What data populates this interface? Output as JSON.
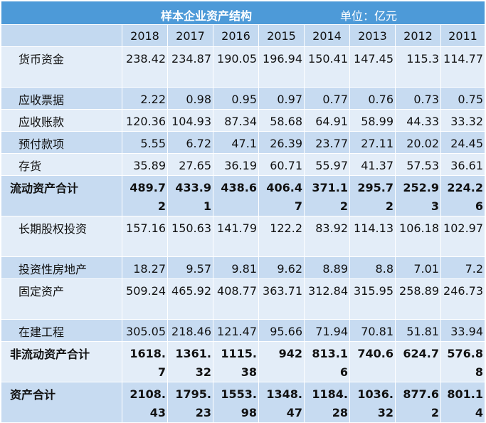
{
  "title": "样本企业资产结构",
  "unit": "单位：亿元",
  "years": [
    "2018",
    "2017",
    "2016",
    "2015",
    "2014",
    "2013",
    "2012",
    "2011"
  ],
  "rows": [
    {
      "label": "货币资金",
      "values": [
        "238.42",
        "234.87",
        "190.05",
        "196.94",
        "150.41",
        "147.45",
        "115.3",
        "114.77"
      ],
      "bold": false,
      "shade": "light",
      "tall": true
    },
    {
      "label": "应收票据",
      "values": [
        "2.22",
        "0.98",
        "0.95",
        "0.97",
        "0.77",
        "0.76",
        "0.73",
        "0.75"
      ],
      "bold": false,
      "shade": "dark",
      "tall": false
    },
    {
      "label": "应收账款",
      "values": [
        "120.36",
        "104.93",
        "87.34",
        "58.68",
        "64.91",
        "58.99",
        "44.33",
        "33.32"
      ],
      "bold": false,
      "shade": "light",
      "tall": false
    },
    {
      "label": "预付款项",
      "values": [
        "5.55",
        "6.72",
        "47.1",
        "26.39",
        "23.77",
        "27.11",
        "20.02",
        "24.45"
      ],
      "bold": false,
      "shade": "dark",
      "tall": false
    },
    {
      "label": "存货",
      "values": [
        "35.89",
        "27.65",
        "36.19",
        "60.71",
        "55.97",
        "41.37",
        "57.53",
        "36.61"
      ],
      "bold": false,
      "shade": "light",
      "tall": false
    },
    {
      "label": "流动资产合计",
      "values": [
        "489.72",
        "433.91",
        "438.6",
        "406.47",
        "371.12",
        "295.72",
        "252.93",
        "224.26"
      ],
      "bold": true,
      "shade": "dark",
      "tall": true
    },
    {
      "label": "长期股权投资",
      "values": [
        "157.16",
        "150.63",
        "141.79",
        "122.2",
        "83.92",
        "114.13",
        "106.18",
        "102.97"
      ],
      "bold": false,
      "shade": "light",
      "tall": true
    },
    {
      "label": "投资性房地产",
      "values": [
        "18.27",
        "9.57",
        "9.81",
        "9.62",
        "8.89",
        "8.8",
        "7.01",
        "7.2"
      ],
      "bold": false,
      "shade": "dark",
      "tall": false
    },
    {
      "label": "固定资产",
      "values": [
        "509.24",
        "465.92",
        "408.77",
        "363.71",
        "312.84",
        "315.95",
        "258.89",
        "246.73"
      ],
      "bold": false,
      "shade": "light",
      "tall": true
    },
    {
      "label": "在建工程",
      "values": [
        "305.05",
        "218.46",
        "121.47",
        "95.66",
        "71.94",
        "70.81",
        "51.81",
        "33.94"
      ],
      "bold": false,
      "shade": "dark",
      "tall": false
    },
    {
      "label": "非流动资产合计",
      "values": [
        "1618.7",
        "1361.32",
        "1115.38",
        "942",
        "813.16",
        "740.6",
        "624.7",
        "576.88"
      ],
      "bold": true,
      "shade": "light",
      "tall": true
    },
    {
      "label": "资产合计",
      "values": [
        "2108.43",
        "1795.23",
        "1553.98",
        "1348.47",
        "1184.28",
        "1036.32",
        "877.62",
        "801.14"
      ],
      "bold": true,
      "shade": "dark",
      "tall": true
    }
  ]
}
